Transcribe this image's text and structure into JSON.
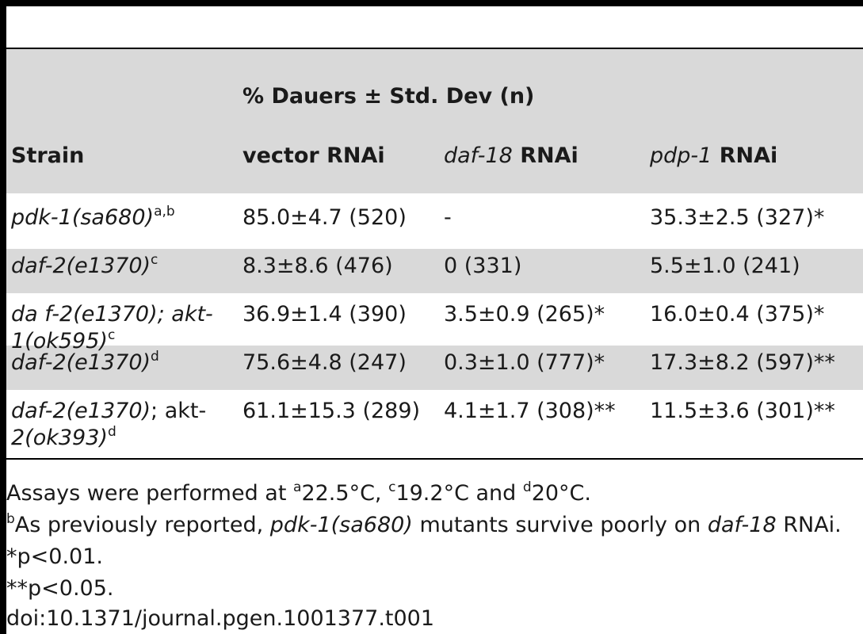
{
  "table": {
    "group_header": "% Dauers ± Std. Dev (n)",
    "columns": {
      "strain": "Strain",
      "vector": "vector RNAi",
      "daf18_gene": "daf-18",
      "daf18_suffix": " RNAi",
      "pdp1_gene": "pdp-1",
      "pdp1_suffix": " RNAi"
    },
    "rows": [
      {
        "strain_line1": "pdk-1(sa680)",
        "strain_sup": "a,b",
        "strain_line2": "",
        "vector": "85.0±4.7 (520)",
        "daf18": "-",
        "pdp1": "35.3±2.5 (327)*"
      },
      {
        "strain_line1": "daf-2(e1370)",
        "strain_sup": "c",
        "strain_line2": "",
        "vector": "8.3±8.6 (476)",
        "daf18": "0 (331)",
        "pdp1": "5.5±1.0 (241)"
      },
      {
        "strain_line1": "da f-2(e1370); akt-",
        "strain_sup": "c",
        "strain_line2": "1(ok595)",
        "vector": "36.9±1.4 (390)",
        "daf18": "3.5±0.9 (265)*",
        "pdp1": "16.0±0.4 (375)*"
      },
      {
        "strain_line1": "daf-2(e1370)",
        "strain_sup": "d",
        "strain_line2": "",
        "vector": "75.6±4.8 (247)",
        "daf18": "0.3±1.0 (777)*",
        "pdp1": "17.3±8.2 (597)**"
      },
      {
        "strain_line1": "daf-2(e1370)",
        "strain_line1b": "; akt-",
        "strain_sup": "d",
        "strain_line2": "2(ok393)",
        "vector": "61.1±15.3 (289)",
        "daf18": "4.1±1.7 (308)**",
        "pdp1": "11.5±3.6 (301)**"
      }
    ]
  },
  "footnotes": {
    "line1": {
      "prefix": "Assays were performed at ",
      "sup_a": "a",
      "temp_a": "22.5°C, ",
      "sup_c": "c",
      "temp_c": "19.2°C and ",
      "sup_d": "d",
      "temp_d": "20°C."
    },
    "line2": {
      "sup_b": "b",
      "text1": "As previously reported, ",
      "italic1": "pdk-1(sa680)",
      "text2": " mutants survive poorly on ",
      "italic2": "daf-18",
      "text3": " RNAi."
    },
    "line3": "*p<0.01.",
    "line4": "**p<0.05.",
    "doi": "doi:10.1371/journal.pgen.1001377.t001"
  }
}
